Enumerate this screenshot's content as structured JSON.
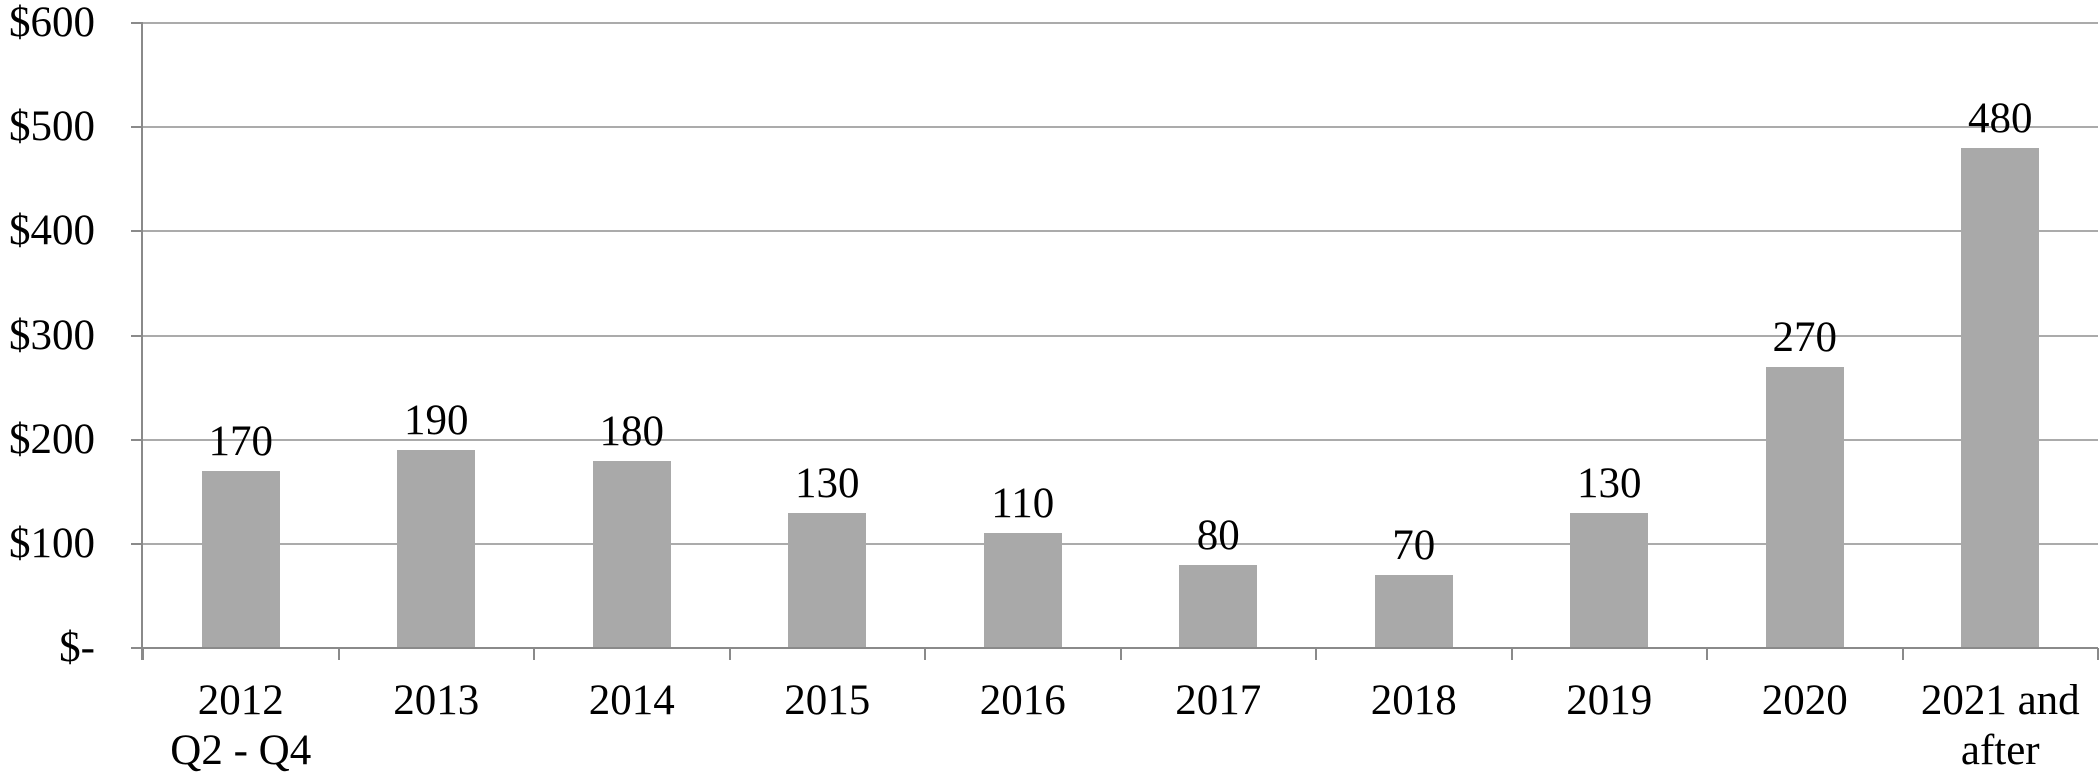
{
  "chart_data": {
    "type": "bar",
    "title": "",
    "xlabel": "",
    "ylabel": "",
    "categories": [
      "2012\nQ2 - Q4",
      "2013",
      "2014",
      "2015",
      "2016",
      "2017",
      "2018",
      "2019",
      "2020",
      "2021 and\nafter"
    ],
    "values": [
      170,
      190,
      180,
      130,
      110,
      80,
      70,
      130,
      270,
      480
    ],
    "data_labels": [
      "170",
      "190",
      "180",
      "130",
      "110",
      "80",
      "70",
      "130",
      "270",
      "480"
    ],
    "ylim": [
      0,
      600
    ],
    "y_tick_interval": 100,
    "y_tick_labels": [
      "$-",
      "$100",
      "$200",
      "$300",
      "$400",
      "$500",
      "$600"
    ],
    "grid": "horizontal-only",
    "legend": "none",
    "colors": {
      "bar_fill": "#A9A9A9",
      "gridline": "#ABABAB",
      "axis": "#8A8A8A",
      "text": "#000000",
      "background": "#FFFFFF"
    }
  }
}
